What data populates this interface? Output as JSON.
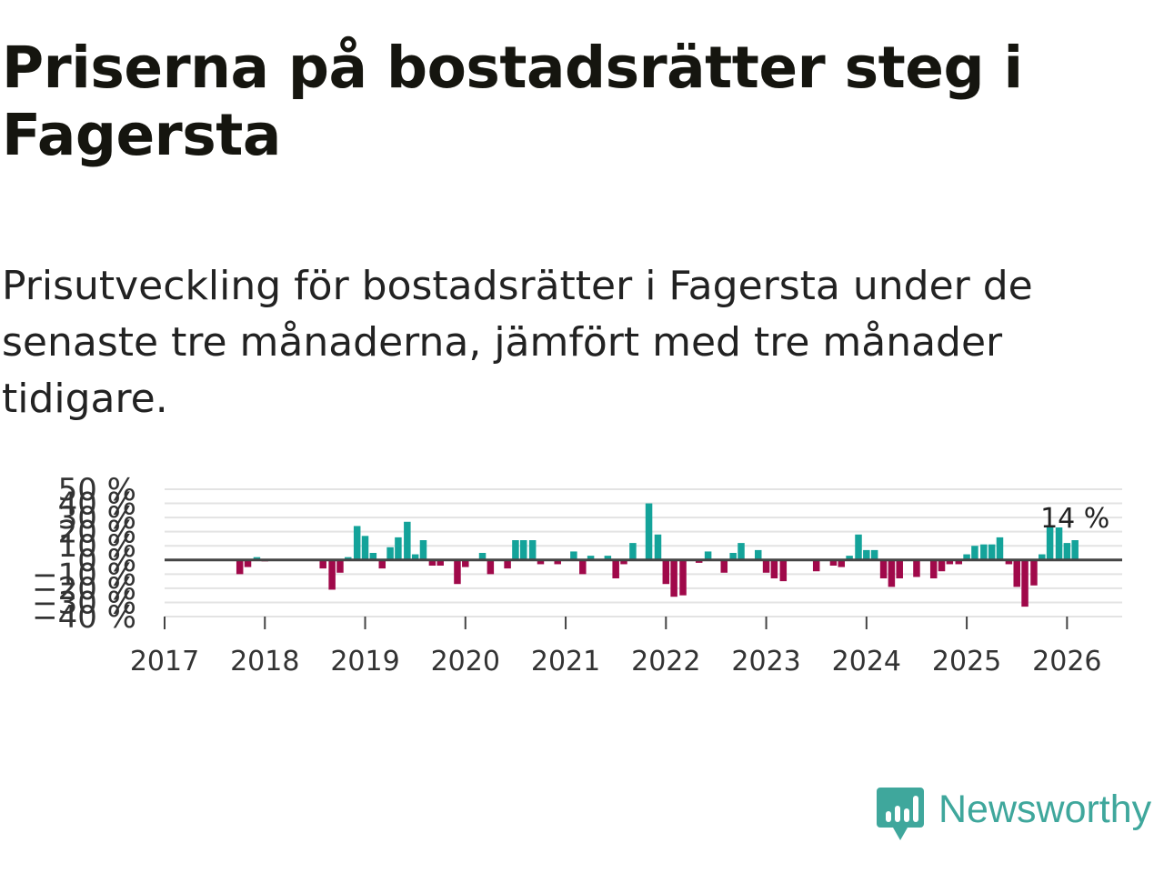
{
  "title": "Priserna på bostadsrätter steg i Fagersta",
  "subtitle": "Prisutveckling för bostadsrätter i Fagersta under de senaste tre månaderna, jämfört med tre månader tidigare.",
  "brand": {
    "name": "Newsworthy",
    "color": "#3fa79c"
  },
  "colors": {
    "positive": "#14a39a",
    "negative": "#a0094a",
    "grid": "#e3e3e3",
    "zero": "#444444"
  },
  "chart_data": {
    "type": "bar",
    "title": "Priserna på bostadsrätter steg i Fagersta",
    "xlabel": "",
    "ylabel": "",
    "ylim": [
      -40,
      50
    ],
    "xlim": [
      2017,
      2026.55
    ],
    "y_ticks": [
      50,
      40,
      30,
      20,
      10,
      0,
      -10,
      -20,
      -30,
      -40
    ],
    "y_tick_labels": [
      "50 %",
      "40 %",
      "30 %",
      "20 %",
      "10 %",
      "0 %",
      "−10 %",
      "−20 %",
      "−30 %",
      "−40 %"
    ],
    "x_ticks": [
      2017,
      2018,
      2019,
      2020,
      2021,
      2022,
      2023,
      2024,
      2025,
      2026
    ],
    "x_tick_labels": [
      "2017",
      "2018",
      "2019",
      "2020",
      "2021",
      "2022",
      "2023",
      "2024",
      "2025",
      "2026"
    ],
    "annotation": {
      "x": 2026.08,
      "label": "14 %"
    },
    "series": [
      {
        "name": "Prisutveckling",
        "x": [
          2017.75,
          2017.83,
          2017.92,
          2018.0,
          2018.58,
          2018.67,
          2018.75,
          2018.83,
          2018.92,
          2019.0,
          2019.08,
          2019.17,
          2019.25,
          2019.33,
          2019.42,
          2019.5,
          2019.58,
          2019.67,
          2019.75,
          2019.92,
          2020.0,
          2020.17,
          2020.25,
          2020.42,
          2020.5,
          2020.58,
          2020.67,
          2020.75,
          2020.92,
          2021.08,
          2021.17,
          2021.25,
          2021.42,
          2021.5,
          2021.58,
          2021.67,
          2021.83,
          2021.92,
          2022.0,
          2022.08,
          2022.17,
          2022.33,
          2022.42,
          2022.58,
          2022.67,
          2022.75,
          2022.92,
          2023.0,
          2023.08,
          2023.17,
          2023.5,
          2023.67,
          2023.75,
          2023.83,
          2023.92,
          2024.0,
          2024.08,
          2024.17,
          2024.25,
          2024.33,
          2024.5,
          2024.67,
          2024.75,
          2024.83,
          2024.92,
          2025.0,
          2025.08,
          2025.17,
          2025.25,
          2025.33,
          2025.42,
          2025.5,
          2025.58,
          2025.67,
          2025.75,
          2025.83,
          2025.92,
          2026.0,
          2026.08
        ],
        "values": [
          -10,
          -5,
          2,
          -1,
          -6,
          -21,
          -9,
          2,
          24,
          17,
          5,
          -6,
          9,
          16,
          27,
          4,
          14,
          -4,
          -4,
          -17,
          -5,
          5,
          -10,
          -6,
          14,
          14,
          14,
          -3,
          -3,
          6,
          -10,
          3,
          3,
          -13,
          -3,
          12,
          40,
          18,
          -17,
          -26,
          -25,
          -2,
          6,
          -9,
          5,
          12,
          7,
          -9,
          -13,
          -15,
          -8,
          -4,
          -5,
          3,
          18,
          7,
          7,
          -13,
          -19,
          -13,
          -12,
          -13,
          -8,
          -3,
          -3,
          4,
          10,
          11,
          11,
          16,
          -3,
          -19,
          -33,
          -18,
          4,
          24,
          23,
          12,
          14
        ]
      }
    ]
  }
}
